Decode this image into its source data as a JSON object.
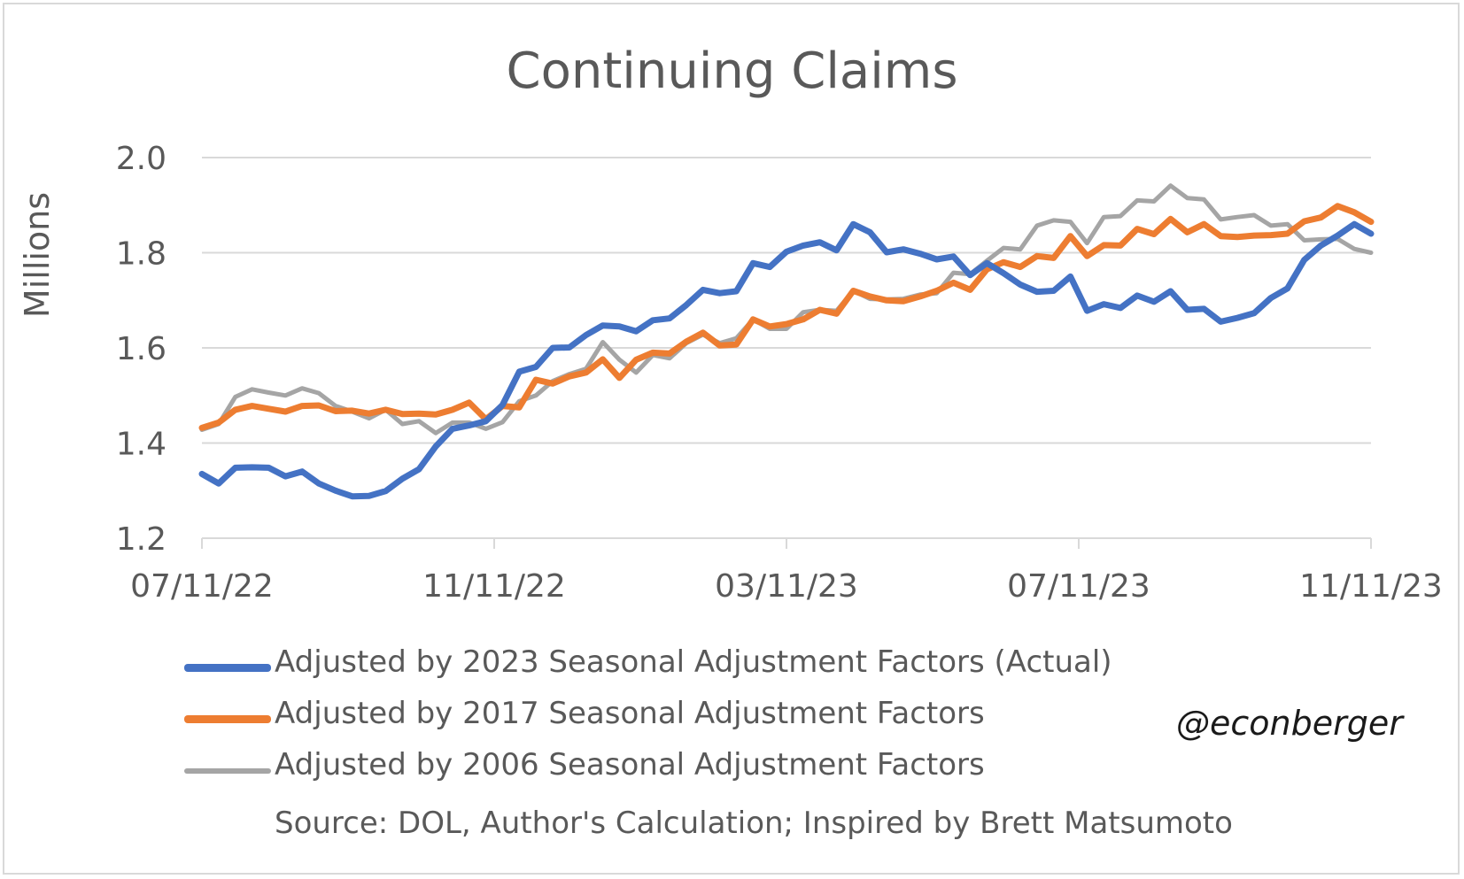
{
  "chart_data": {
    "type": "line",
    "title": "Continuing Claims",
    "ylabel": "Millions",
    "xlabel": "",
    "ylim": [
      1.2,
      2.0
    ],
    "yticks": [
      "2.0",
      "1.8",
      "1.6",
      "1.4",
      "1.2"
    ],
    "xticks": [
      "07/11/22",
      "11/11/22",
      "03/11/23",
      "07/11/23",
      "11/11/23"
    ],
    "grid": true,
    "legend_position": "bottom",
    "series": [
      {
        "name": "Adjusted by 2023 Seasonal Adjustment Factors (Actual)",
        "color": "#4472c4",
        "values": [
          1.335,
          1.315,
          1.348,
          1.349,
          1.348,
          1.33,
          1.34,
          1.315,
          1.3,
          1.288,
          1.289,
          1.299,
          1.325,
          1.345,
          1.393,
          1.43,
          1.437,
          1.446,
          1.48,
          1.55,
          1.56,
          1.6,
          1.601,
          1.627,
          1.647,
          1.645,
          1.635,
          1.658,
          1.662,
          1.69,
          1.722,
          1.715,
          1.719,
          1.778,
          1.77,
          1.802,
          1.815,
          1.822,
          1.805,
          1.86,
          1.843,
          1.801,
          1.807,
          1.798,
          1.786,
          1.792,
          1.753,
          1.778,
          1.757,
          1.733,
          1.718,
          1.72,
          1.75,
          1.678,
          1.692,
          1.684,
          1.71,
          1.697,
          1.719,
          1.68,
          1.682,
          1.655,
          1.663,
          1.673,
          1.705,
          1.725,
          1.785,
          1.815,
          1.836,
          1.86,
          1.84
        ]
      },
      {
        "name": "Adjusted by 2017 Seasonal Adjustment Factors",
        "color": "#ed7d31",
        "values": [
          1.432,
          1.443,
          1.47,
          1.478,
          1.472,
          1.466,
          1.478,
          1.479,
          1.467,
          1.468,
          1.462,
          1.47,
          1.461,
          1.462,
          1.46,
          1.47,
          1.485,
          1.45,
          1.478,
          1.475,
          1.533,
          1.525,
          1.54,
          1.548,
          1.576,
          1.537,
          1.575,
          1.59,
          1.588,
          1.613,
          1.632,
          1.605,
          1.607,
          1.66,
          1.645,
          1.65,
          1.66,
          1.68,
          1.672,
          1.72,
          1.708,
          1.7,
          1.698,
          1.708,
          1.72,
          1.737,
          1.722,
          1.765,
          1.78,
          1.77,
          1.793,
          1.789,
          1.835,
          1.793,
          1.816,
          1.815,
          1.85,
          1.839,
          1.871,
          1.843,
          1.86,
          1.835,
          1.833,
          1.836,
          1.837,
          1.84,
          1.866,
          1.874,
          1.898,
          1.885,
          1.865
        ]
      },
      {
        "name": "Adjusted by 2006 Seasonal Adjustment Factors",
        "color": "#a5a5a5",
        "values": [
          1.428,
          1.44,
          1.497,
          1.513,
          1.506,
          1.5,
          1.515,
          1.505,
          1.478,
          1.466,
          1.452,
          1.47,
          1.44,
          1.446,
          1.421,
          1.443,
          1.443,
          1.43,
          1.444,
          1.488,
          1.5,
          1.53,
          1.545,
          1.556,
          1.612,
          1.575,
          1.548,
          1.585,
          1.578,
          1.61,
          1.628,
          1.61,
          1.62,
          1.66,
          1.64,
          1.64,
          1.675,
          1.68,
          1.678,
          1.72,
          1.703,
          1.702,
          1.703,
          1.712,
          1.715,
          1.758,
          1.755,
          1.783,
          1.81,
          1.807,
          1.857,
          1.868,
          1.865,
          1.82,
          1.875,
          1.877,
          1.91,
          1.908,
          1.941,
          1.915,
          1.912,
          1.87,
          1.875,
          1.879,
          1.857,
          1.86,
          1.826,
          1.828,
          1.829,
          1.808,
          1.8
        ]
      }
    ]
  },
  "source_note": "Source: DOL, Author's Calculation; Inspired by Brett Matsumoto",
  "watermark": "@econberger",
  "colors": {
    "axis_text": "#595959",
    "grid": "#d9d9d9"
  }
}
